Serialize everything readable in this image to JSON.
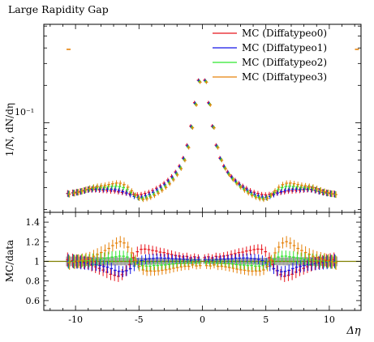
{
  "chart_data": [
    {
      "type": "scatter",
      "title": "Large Rapidity Gap",
      "xlabel": "",
      "ylabel": "1/N, dN/dη",
      "yscale": "log",
      "xlim": [
        -12.5,
        12.5
      ],
      "ylim": [
        0.019,
        0.62
      ],
      "y_tick_label": "10⁻¹",
      "legend": "top-right",
      "x": [
        -10.55,
        -10.15,
        -9.85,
        -9.55,
        -9.25,
        -8.95,
        -8.65,
        -8.35,
        -8.05,
        -7.75,
        -7.45,
        -7.15,
        -6.85,
        -6.55,
        -6.25,
        -5.95,
        -5.65,
        -5.35,
        -5.05,
        -4.75,
        -4.45,
        -4.15,
        -3.85,
        -3.55,
        -3.25,
        -2.95,
        -2.65,
        -2.35,
        -2.05,
        -1.75,
        -1.45,
        -1.15,
        -0.85,
        -0.55,
        -0.25,
        0.25,
        0.55,
        0.85,
        1.15,
        1.45,
        1.75,
        2.05,
        2.35,
        2.65,
        2.95,
        3.25,
        3.55,
        3.85,
        4.15,
        4.45,
        4.75,
        5.05,
        5.35,
        5.65,
        5.95,
        6.25,
        6.55,
        6.85,
        7.15,
        7.45,
        7.75,
        8.05,
        8.35,
        8.65,
        8.95,
        9.25,
        9.55,
        9.85,
        10.15,
        10.45
      ],
      "series": [
        {
          "name": "MC (Diffatypeo0)",
          "color": "#e8141c",
          "values": [
            0.027,
            0.0273,
            0.0276,
            0.028,
            0.0285,
            0.029,
            0.029,
            0.029,
            0.0288,
            0.0286,
            0.0285,
            0.0283,
            0.0282,
            0.0278,
            0.0275,
            0.0272,
            0.0268,
            0.0265,
            0.0263,
            0.0265,
            0.027,
            0.0276,
            0.0285,
            0.0297,
            0.031,
            0.0326,
            0.0346,
            0.037,
            0.0402,
            0.0448,
            0.052,
            0.066,
            0.094,
            0.145,
            0.22,
            0.22,
            0.145,
            0.094,
            0.066,
            0.052,
            0.0448,
            0.0402,
            0.037,
            0.0346,
            0.0326,
            0.031,
            0.0297,
            0.0285,
            0.0276,
            0.027,
            0.0265,
            0.0263,
            0.0265,
            0.0268,
            0.0272,
            0.0275,
            0.0278,
            0.0282,
            0.0283,
            0.0285,
            0.0286,
            0.0288,
            0.029,
            0.029,
            0.0286,
            0.0281,
            0.0276,
            0.0273,
            0.027,
            0.0268
          ]
        },
        {
          "name": "MC (Diffatypeo1)",
          "color": "#1414e6",
          "values": [
            0.0268,
            0.0272,
            0.0275,
            0.0279,
            0.0284,
            0.0289,
            0.0291,
            0.0293,
            0.0292,
            0.0291,
            0.0292,
            0.0291,
            0.0289,
            0.0285,
            0.0279,
            0.0272,
            0.0263,
            0.0255,
            0.025,
            0.0252,
            0.0258,
            0.0265,
            0.0275,
            0.0288,
            0.0302,
            0.0318,
            0.0339,
            0.0363,
            0.0396,
            0.0442,
            0.0515,
            0.065,
            0.093,
            0.143,
            0.218,
            0.218,
            0.143,
            0.093,
            0.065,
            0.0515,
            0.0442,
            0.0396,
            0.0363,
            0.0339,
            0.0318,
            0.0302,
            0.0288,
            0.0275,
            0.0265,
            0.0258,
            0.0252,
            0.025,
            0.0255,
            0.0263,
            0.0272,
            0.0279,
            0.0285,
            0.0289,
            0.0291,
            0.0292,
            0.0291,
            0.0292,
            0.0293,
            0.0291,
            0.0286,
            0.028,
            0.0275,
            0.0271,
            0.0268,
            0.0266
          ]
        },
        {
          "name": "MC (Diffatypeo2)",
          "color": "#2ee62e",
          "values": [
            0.0267,
            0.0272,
            0.0276,
            0.0281,
            0.0287,
            0.0293,
            0.0297,
            0.03,
            0.0301,
            0.0302,
            0.0305,
            0.0307,
            0.0308,
            0.0306,
            0.03,
            0.029,
            0.0275,
            0.026,
            0.0248,
            0.0246,
            0.025,
            0.0256,
            0.0266,
            0.0278,
            0.0292,
            0.0308,
            0.0329,
            0.0354,
            0.0387,
            0.0433,
            0.0505,
            0.064,
            0.092,
            0.141,
            0.215,
            0.215,
            0.141,
            0.092,
            0.064,
            0.0505,
            0.0433,
            0.0387,
            0.0354,
            0.0329,
            0.0308,
            0.0292,
            0.0278,
            0.0266,
            0.0256,
            0.025,
            0.0246,
            0.0248,
            0.026,
            0.0275,
            0.029,
            0.03,
            0.0306,
            0.0308,
            0.0307,
            0.0305,
            0.0302,
            0.0301,
            0.03,
            0.0297,
            0.029,
            0.0283,
            0.0277,
            0.0272,
            0.0268,
            0.0265
          ]
        },
        {
          "name": "MC (Diffatypeo3)",
          "color": "#e6820a",
          "values": [
            0.0266,
            0.0271,
            0.0276,
            0.0282,
            0.0289,
            0.0296,
            0.0302,
            0.0307,
            0.031,
            0.0313,
            0.0318,
            0.0323,
            0.0327,
            0.0326,
            0.0318,
            0.0303,
            0.0283,
            0.0262,
            0.0246,
            0.0241,
            0.0244,
            0.025,
            0.0259,
            0.0271,
            0.0285,
            0.0301,
            0.0322,
            0.0347,
            0.038,
            0.0426,
            0.0498,
            0.063,
            0.091,
            0.139,
            0.212,
            0.212,
            0.139,
            0.091,
            0.063,
            0.0498,
            0.0426,
            0.038,
            0.0347,
            0.0322,
            0.0301,
            0.0285,
            0.0271,
            0.0259,
            0.025,
            0.0244,
            0.0241,
            0.0246,
            0.0262,
            0.0283,
            0.0303,
            0.0318,
            0.0326,
            0.0327,
            0.0323,
            0.0318,
            0.0313,
            0.031,
            0.0307,
            0.0302,
            0.0294,
            0.0286,
            0.0279,
            0.0273,
            0.0268,
            0.0264
          ]
        }
      ],
      "extra_points": [
        {
          "x": -10.55,
          "y": 0.39,
          "color": "#e6820a"
        },
        {
          "x": 11.85,
          "y": 0.39,
          "color": "#e6820a"
        }
      ]
    },
    {
      "type": "scatter",
      "xlabel": "Δη",
      "ylabel": "MC/data",
      "xlim": [
        -12.5,
        12.5
      ],
      "ylim": [
        0.5,
        1.5
      ],
      "x_tick_labels": [
        "-10",
        "-5",
        "0",
        "5",
        "10"
      ],
      "x_ticks": [
        -10,
        -5,
        0,
        5,
        10
      ],
      "y_tick_labels": [
        "0.6",
        "0.8",
        "1",
        "1.2",
        "1.4"
      ],
      "y_ticks": [
        0.6,
        0.8,
        1.0,
        1.2,
        1.4
      ],
      "reference_color": "#a0a0a0",
      "reference_line_color": "#808000"
    }
  ]
}
